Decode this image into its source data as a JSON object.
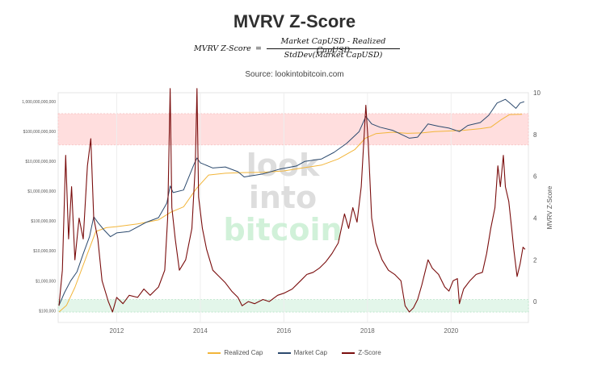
{
  "header": {
    "title": "MVRV Z-Score",
    "formula_lhs": "MVRV Z-Score",
    "formula_eq": "=",
    "formula_numerator": "Market CapUSD - Realized CapUSD",
    "formula_denominator": "StdDev(Market CapUSD)",
    "source": "Source: lookintobitcoin.com"
  },
  "watermark": [
    "look",
    "into",
    "bitcoin"
  ],
  "colors": {
    "realized_cap": "#f2b53a",
    "market_cap": "#2c4a6e",
    "z_score": "#7a0d0d",
    "top_band": "#ffdede",
    "bottom_band": "#e3f6ea"
  },
  "chart_data": {
    "type": "line",
    "x_range": [
      2010.6,
      2021.85
    ],
    "x_ticks": [
      {
        "value": 2012,
        "label": "2012"
      },
      {
        "value": 2014,
        "label": "2014"
      },
      {
        "value": 2016,
        "label": "2016"
      },
      {
        "value": 2018,
        "label": "2018"
      },
      {
        "value": 2020,
        "label": "2020"
      }
    ],
    "y_left": {
      "scale": "log",
      "range": [
        40000,
        2000000000000
      ],
      "ticks": [
        {
          "value": 100000,
          "label": "$100,000"
        },
        {
          "value": 1000000,
          "label": "$1,000,000"
        },
        {
          "value": 10000000,
          "label": "$10,000,000"
        },
        {
          "value": 100000000,
          "label": "$100,000,000"
        },
        {
          "value": 1000000000,
          "label": "$1,000,000,000"
        },
        {
          "value": 10000000000,
          "label": "$10,000,000,000"
        },
        {
          "value": 100000000000,
          "label": "$100,000,000,000"
        },
        {
          "value": 1000000000000,
          "label": "1,000,000,000,000"
        }
      ]
    },
    "y_right": {
      "label": "MVRV Z-Score",
      "scale": "linear",
      "range": [
        -1,
        10
      ],
      "ticks": [
        0,
        2,
        4,
        6,
        8,
        10
      ]
    },
    "bands": [
      {
        "name": "top",
        "y_left_from": 400000000000,
        "y_left_to": 500000000000
      },
      {
        "name": "bottom",
        "y_right_from": -0.5,
        "y_right_to": 0.1
      }
    ],
    "series": [
      {
        "name": "Realized Cap",
        "axis": "left",
        "points": [
          [
            2010.62,
            90000
          ],
          [
            2010.8,
            150000
          ],
          [
            2011.0,
            600000
          ],
          [
            2011.3,
            8000000
          ],
          [
            2011.5,
            45000000
          ],
          [
            2011.75,
            60000000
          ],
          [
            2012.0,
            65000000
          ],
          [
            2012.5,
            80000000
          ],
          [
            2013.0,
            110000000
          ],
          [
            2013.3,
            200000000
          ],
          [
            2013.6,
            300000000
          ],
          [
            2013.9,
            1200000000
          ],
          [
            2014.2,
            3500000000
          ],
          [
            2014.6,
            4000000000
          ],
          [
            2015.0,
            4200000000
          ],
          [
            2015.5,
            4300000000
          ],
          [
            2016.0,
            4800000000
          ],
          [
            2016.5,
            6200000000
          ],
          [
            2016.9,
            7500000000
          ],
          [
            2017.3,
            12000000000
          ],
          [
            2017.7,
            25000000000
          ],
          [
            2017.95,
            60000000000
          ],
          [
            2018.2,
            85000000000
          ],
          [
            2018.6,
            95000000000
          ],
          [
            2018.95,
            87000000000
          ],
          [
            2019.3,
            90000000000
          ],
          [
            2019.6,
            100000000000
          ],
          [
            2020.0,
            105000000000
          ],
          [
            2020.3,
            110000000000
          ],
          [
            2020.7,
            125000000000
          ],
          [
            2020.95,
            140000000000
          ],
          [
            2021.2,
            250000000000
          ],
          [
            2021.4,
            370000000000
          ],
          [
            2021.7,
            380000000000
          ]
        ]
      },
      {
        "name": "Market Cap",
        "axis": "left",
        "points": [
          [
            2010.62,
            150000
          ],
          [
            2010.75,
            400000
          ],
          [
            2010.9,
            1000000
          ],
          [
            2011.05,
            2000000
          ],
          [
            2011.2,
            8000000
          ],
          [
            2011.35,
            30000000
          ],
          [
            2011.45,
            140000000
          ],
          [
            2011.55,
            90000000
          ],
          [
            2011.7,
            50000000
          ],
          [
            2011.85,
            30000000
          ],
          [
            2012.0,
            40000000
          ],
          [
            2012.3,
            45000000
          ],
          [
            2012.7,
            90000000
          ],
          [
            2013.0,
            130000000
          ],
          [
            2013.2,
            400000000
          ],
          [
            2013.28,
            1500000000
          ],
          [
            2013.35,
            900000000
          ],
          [
            2013.6,
            1100000000
          ],
          [
            2013.85,
            8000000000
          ],
          [
            2013.92,
            13000000000
          ],
          [
            2014.0,
            9000000000
          ],
          [
            2014.3,
            6000000000
          ],
          [
            2014.6,
            6500000000
          ],
          [
            2014.9,
            4500000000
          ],
          [
            2015.05,
            3000000000
          ],
          [
            2015.5,
            3800000000
          ],
          [
            2015.9,
            5500000000
          ],
          [
            2016.3,
            7000000000
          ],
          [
            2016.5,
            10000000000
          ],
          [
            2016.9,
            12000000000
          ],
          [
            2017.2,
            20000000000
          ],
          [
            2017.5,
            40000000000
          ],
          [
            2017.8,
            100000000000
          ],
          [
            2017.96,
            320000000000
          ],
          [
            2018.1,
            180000000000
          ],
          [
            2018.3,
            140000000000
          ],
          [
            2018.6,
            110000000000
          ],
          [
            2018.9,
            70000000000
          ],
          [
            2019.0,
            60000000000
          ],
          [
            2019.2,
            65000000000
          ],
          [
            2019.45,
            180000000000
          ],
          [
            2019.7,
            150000000000
          ],
          [
            2019.95,
            130000000000
          ],
          [
            2020.2,
            100000000000
          ],
          [
            2020.4,
            160000000000
          ],
          [
            2020.7,
            200000000000
          ],
          [
            2020.9,
            350000000000
          ],
          [
            2021.1,
            900000000000
          ],
          [
            2021.3,
            1200000000000
          ],
          [
            2021.45,
            800000000000
          ],
          [
            2021.55,
            600000000000
          ],
          [
            2021.65,
            900000000000
          ],
          [
            2021.75,
            1000000000000
          ]
        ]
      },
      {
        "name": "Z-Score",
        "axis": "right",
        "points": [
          [
            2010.62,
            -0.2
          ],
          [
            2010.7,
            1.5
          ],
          [
            2010.78,
            7.0
          ],
          [
            2010.85,
            3.0
          ],
          [
            2010.92,
            5.5
          ],
          [
            2011.0,
            2.0
          ],
          [
            2011.1,
            4.0
          ],
          [
            2011.2,
            3.0
          ],
          [
            2011.3,
            6.5
          ],
          [
            2011.38,
            7.8
          ],
          [
            2011.45,
            4.0
          ],
          [
            2011.55,
            3.0
          ],
          [
            2011.65,
            1.0
          ],
          [
            2011.8,
            0.0
          ],
          [
            2011.9,
            -0.5
          ],
          [
            2012.0,
            0.2
          ],
          [
            2012.15,
            -0.1
          ],
          [
            2012.3,
            0.3
          ],
          [
            2012.5,
            0.2
          ],
          [
            2012.65,
            0.6
          ],
          [
            2012.8,
            0.3
          ],
          [
            2013.0,
            0.7
          ],
          [
            2013.15,
            1.5
          ],
          [
            2013.22,
            4.0
          ],
          [
            2013.28,
            10.2
          ],
          [
            2013.32,
            4.5
          ],
          [
            2013.4,
            3.0
          ],
          [
            2013.5,
            1.5
          ],
          [
            2013.65,
            2.0
          ],
          [
            2013.8,
            3.5
          ],
          [
            2013.88,
            6.5
          ],
          [
            2013.92,
            10.2
          ],
          [
            2013.96,
            5.0
          ],
          [
            2014.05,
            3.5
          ],
          [
            2014.15,
            2.5
          ],
          [
            2014.3,
            1.5
          ],
          [
            2014.45,
            1.2
          ],
          [
            2014.6,
            0.9
          ],
          [
            2014.75,
            0.5
          ],
          [
            2014.9,
            0.2
          ],
          [
            2015.0,
            -0.2
          ],
          [
            2015.15,
            0.0
          ],
          [
            2015.3,
            -0.1
          ],
          [
            2015.5,
            0.1
          ],
          [
            2015.65,
            0.0
          ],
          [
            2015.85,
            0.3
          ],
          [
            2016.0,
            0.4
          ],
          [
            2016.2,
            0.6
          ],
          [
            2016.4,
            1.0
          ],
          [
            2016.55,
            1.3
          ],
          [
            2016.7,
            1.4
          ],
          [
            2016.85,
            1.6
          ],
          [
            2017.0,
            1.9
          ],
          [
            2017.15,
            2.3
          ],
          [
            2017.3,
            2.8
          ],
          [
            2017.45,
            4.2
          ],
          [
            2017.55,
            3.5
          ],
          [
            2017.65,
            4.5
          ],
          [
            2017.75,
            3.8
          ],
          [
            2017.85,
            5.5
          ],
          [
            2017.96,
            9.4
          ],
          [
            2018.02,
            7.5
          ],
          [
            2018.1,
            4.0
          ],
          [
            2018.2,
            2.8
          ],
          [
            2018.35,
            2.0
          ],
          [
            2018.5,
            1.5
          ],
          [
            2018.65,
            1.3
          ],
          [
            2018.8,
            1.0
          ],
          [
            2018.9,
            -0.2
          ],
          [
            2019.0,
            -0.5
          ],
          [
            2019.1,
            -0.3
          ],
          [
            2019.2,
            0.1
          ],
          [
            2019.3,
            0.8
          ],
          [
            2019.45,
            2.0
          ],
          [
            2019.55,
            1.6
          ],
          [
            2019.7,
            1.3
          ],
          [
            2019.85,
            0.7
          ],
          [
            2019.95,
            0.5
          ],
          [
            2020.05,
            1.0
          ],
          [
            2020.15,
            1.1
          ],
          [
            2020.2,
            -0.1
          ],
          [
            2020.3,
            0.6
          ],
          [
            2020.45,
            1.0
          ],
          [
            2020.6,
            1.3
          ],
          [
            2020.75,
            1.4
          ],
          [
            2020.85,
            2.3
          ],
          [
            2020.95,
            3.5
          ],
          [
            2021.05,
            4.5
          ],
          [
            2021.12,
            6.5
          ],
          [
            2021.18,
            5.5
          ],
          [
            2021.25,
            7.0
          ],
          [
            2021.3,
            5.5
          ],
          [
            2021.38,
            4.8
          ],
          [
            2021.45,
            3.5
          ],
          [
            2021.5,
            2.5
          ],
          [
            2021.58,
            1.2
          ],
          [
            2021.65,
            1.8
          ],
          [
            2021.72,
            2.6
          ],
          [
            2021.77,
            2.5
          ]
        ]
      }
    ],
    "legend_position": "bottom",
    "grid": true
  }
}
